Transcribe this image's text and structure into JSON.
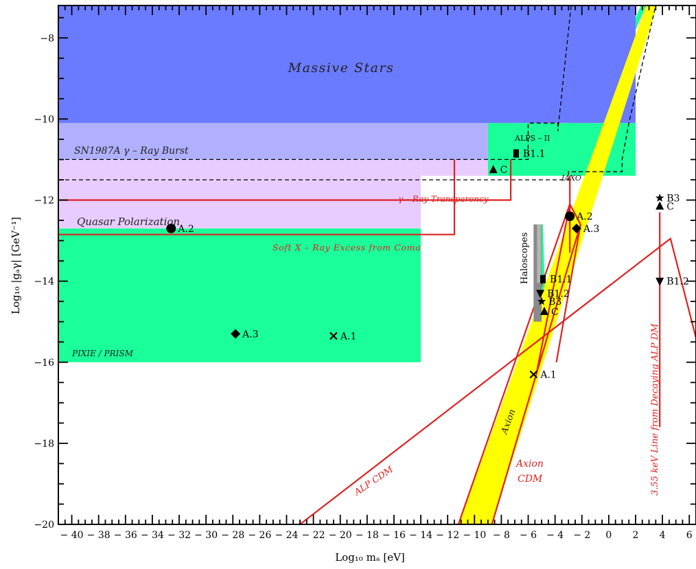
{
  "chart_data": {
    "type": "scatter",
    "title": "",
    "xlabel": "Log₁₀ mₐ [eV]",
    "ylabel": "Log₁₀ |gₐγ| [GeV⁻¹]",
    "xlim": [
      -41,
      6.5
    ],
    "ylim": [
      -20,
      -7.2
    ],
    "xticks": [
      -40,
      -38,
      -36,
      -34,
      -32,
      -30,
      -28,
      -26,
      -24,
      -22,
      -20,
      -18,
      -16,
      -14,
      -12,
      -10,
      -8,
      -6,
      -4,
      -2,
      0,
      2,
      4,
      6
    ],
    "yticks": [
      -20,
      -18,
      -16,
      -14,
      -12,
      -10,
      -8
    ],
    "grid": false,
    "regions": [
      {
        "label": "PIXIE / PRISM",
        "color": "#1aff99",
        "polygon": [
          [
            -41,
            -16
          ],
          [
            -14,
            -16
          ],
          [
            -14,
            -12.7
          ],
          [
            -41,
            -12.7
          ]
        ]
      },
      {
        "label": "Quasar Polarization",
        "color": "#e8ccff",
        "polygon": [
          [
            -41,
            -12.7
          ],
          [
            -14,
            -12.7
          ],
          [
            -14,
            -11
          ],
          [
            -41,
            -11
          ]
        ]
      },
      {
        "label": "",
        "color": "#e8ccff",
        "polygon": [
          [
            -14,
            -11
          ],
          [
            -9,
            -11
          ],
          [
            -9,
            -11.4
          ],
          [
            -14,
            -11.4
          ]
        ]
      },
      {
        "label": "SN1987A γ – Ray Burst",
        "color": "#b0b0ff",
        "polygon": [
          [
            -41,
            -11
          ],
          [
            -9,
            -11
          ],
          [
            -9,
            -10.1
          ],
          [
            -41,
            -10.1
          ]
        ]
      },
      {
        "label": "",
        "color": "#1aff99",
        "polygon": [
          [
            -14,
            -11.4
          ],
          [
            -9,
            -11.4
          ],
          [
            -9,
            -10.1
          ],
          [
            2,
            -10.1
          ],
          [
            2,
            -11.4
          ],
          [
            -2,
            -11.4
          ]
        ]
      },
      {
        "label": "Massive Stars",
        "color": "#6b7bff",
        "polygon": [
          [
            -41,
            -10.1
          ],
          [
            2,
            -10.1
          ],
          [
            2,
            -7.2
          ],
          [
            -41,
            -7.2
          ]
        ]
      },
      {
        "label": "",
        "color": "#1aff99",
        "polygon": [
          [
            2,
            -7.5
          ],
          [
            2.4,
            -7.2
          ],
          [
            2.8,
            -7.2
          ],
          [
            2,
            -7.8
          ]
        ]
      },
      {
        "label": "",
        "color": "#1aff99",
        "polygon": [
          [
            -5.4,
            -15.8
          ],
          [
            -4.6,
            -15.8
          ],
          [
            -4.9,
            -12.6
          ],
          [
            -5.3,
            -12.6
          ]
        ]
      },
      {
        "label": "Axion",
        "color": "#ffff00",
        "polygon": [
          [
            -11.2,
            -20
          ],
          [
            -8.7,
            -20
          ],
          [
            3.6,
            -7.2
          ],
          [
            2.8,
            -7.2
          ]
        ]
      }
    ],
    "dashed_lines": [
      {
        "label": "ALPS – II",
        "points": [
          [
            -41,
            -11
          ],
          [
            -6,
            -11
          ],
          [
            -6,
            -10.1
          ],
          [
            -3.8,
            -10.1
          ],
          [
            -3.8,
            -10.3
          ],
          [
            -2.8,
            -7.2
          ]
        ]
      },
      {
        "label": "IAXO",
        "points": [
          [
            -41,
            -11.5
          ],
          [
            -3,
            -11.5
          ],
          [
            -3,
            -11.3
          ],
          [
            1,
            -11.3
          ],
          [
            1,
            -11
          ],
          [
            1.5,
            -10.1
          ],
          [
            3.5,
            -7.2
          ]
        ]
      }
    ],
    "red_lines": [
      {
        "label": "γ – Ray Transparency",
        "points": [
          [
            -41,
            -12
          ],
          [
            -7.3,
            -12
          ],
          [
            -7.3,
            -11
          ]
        ]
      },
      {
        "label": "Soft X – Ray Excess from Coma",
        "points": [
          [
            -41,
            -12.85
          ],
          [
            -11.5,
            -12.85
          ],
          [
            -11.5,
            -11
          ]
        ]
      },
      {
        "label": "ALP CDM",
        "points": [
          [
            -23,
            -20
          ],
          [
            4.6,
            -12.95
          ],
          [
            6.5,
            -15.4
          ]
        ]
      },
      {
        "label": "",
        "points": [
          [
            -2.9,
            -11.4
          ],
          [
            -2.9,
            -13.3
          ]
        ]
      },
      {
        "label": "",
        "points": [
          [
            -5.4,
            -16.3
          ],
          [
            -2.9,
            -12.1
          ]
        ]
      },
      {
        "label": "",
        "points": [
          [
            -3.9,
            -16.0
          ],
          [
            -2.1,
            -12.6
          ]
        ]
      }
    ],
    "axion_cdm": {
      "label": "Axion CDM",
      "points": [
        [
          -11.2,
          -20
        ],
        [
          -2.9,
          -12.1
        ],
        [
          -2.1,
          -12.6
        ],
        [
          -8.7,
          -20
        ]
      ]
    },
    "decaying_line": {
      "label": "3.55 keV Line from Decaying ALP DM",
      "x": 3.8,
      "y": [
        -17.6,
        -12.3
      ]
    },
    "haloscopes": {
      "label": "Haloscopes",
      "x": [
        -5.6,
        -5.0
      ],
      "y": [
        -15,
        -12.6
      ]
    },
    "points": [
      {
        "label": "A.1",
        "marker": "x",
        "x": -20.5,
        "y": -15.35
      },
      {
        "label": "A.1",
        "marker": "x",
        "x": -5.6,
        "y": -16.3
      },
      {
        "label": "A.2",
        "marker": "circle",
        "x": -32.6,
        "y": -12.7
      },
      {
        "label": "A.2",
        "marker": "circle",
        "x": -2.9,
        "y": -12.4
      },
      {
        "label": "A.3",
        "marker": "diamond",
        "x": -27.8,
        "y": -15.3
      },
      {
        "label": "A.3",
        "marker": "diamond",
        "x": -2.4,
        "y": -12.7
      },
      {
        "label": "B1.1",
        "marker": "square",
        "x": -6.9,
        "y": -10.85
      },
      {
        "label": "B1.1",
        "marker": "square",
        "x": -4.9,
        "y": -13.95
      },
      {
        "label": "B1.2",
        "marker": "triangle-down",
        "x": -5.1,
        "y": -14.3
      },
      {
        "label": "B1.2",
        "marker": "triangle-down",
        "x": 3.8,
        "y": -14.0
      },
      {
        "label": "B3",
        "marker": "star",
        "x": -5.0,
        "y": -14.5
      },
      {
        "label": "B3",
        "marker": "star",
        "x": 3.8,
        "y": -11.95
      },
      {
        "label": "C",
        "marker": "triangle-up",
        "x": -8.6,
        "y": -11.25
      },
      {
        "label": "C",
        "marker": "triangle-up",
        "x": -4.8,
        "y": -14.75
      },
      {
        "label": "C",
        "marker": "triangle-up",
        "x": 3.8,
        "y": -12.15
      }
    ]
  }
}
